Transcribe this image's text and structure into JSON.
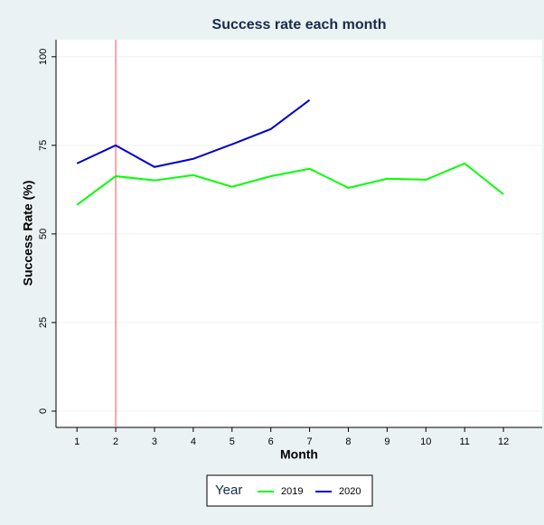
{
  "chart_data": {
    "type": "line",
    "title": "Success rate each month",
    "x_label": "Month",
    "y_label": "Success Rate (%)",
    "x": [
      1,
      2,
      3,
      4,
      5,
      6,
      7,
      8,
      9,
      10,
      11,
      12
    ],
    "series": [
      {
        "name": "2019",
        "color": "#00ff00",
        "values": [
          58.2,
          66.3,
          65.1,
          66.6,
          63.3,
          66.3,
          68.4,
          63.0,
          65.6,
          65.3,
          69.9,
          61.2
        ]
      },
      {
        "name": "2020",
        "color": "#0000cc",
        "values": [
          69.9,
          75.0,
          68.9,
          71.2,
          75.3,
          79.6,
          87.8,
          null,
          null,
          null,
          null,
          null
        ]
      }
    ],
    "xlim": [
      0.46,
      13
    ],
    "xticks": [
      1,
      2,
      3,
      4,
      5,
      6,
      7,
      8,
      9,
      10,
      11,
      12
    ],
    "ylim": [
      -4.6,
      104.8
    ],
    "yticks": [
      0,
      25,
      50,
      75,
      100
    ],
    "grid": true,
    "xline": 2,
    "xline_color": "#ff6a6a",
    "legend_title": "Year",
    "legend_position": "bottom"
  }
}
